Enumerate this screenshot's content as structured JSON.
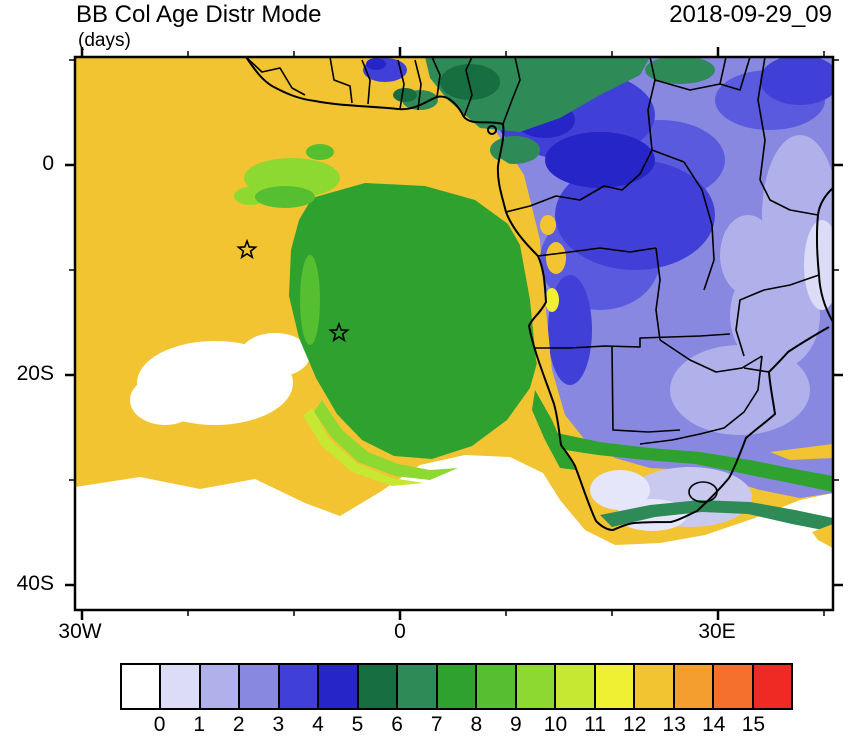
{
  "header": {
    "title": "BB Col Age Distr Mode",
    "units": "(days)",
    "timestamp": "2018-09-29_09"
  },
  "axes": {
    "y_ticks": [
      "0",
      "20S",
      "40S"
    ],
    "x_ticks": [
      "30W",
      "0",
      "30E"
    ]
  },
  "colorbar": {
    "labels": [
      "0",
      "1",
      "2",
      "3",
      "4",
      "5",
      "6",
      "7",
      "8",
      "9",
      "10",
      "11",
      "12",
      "13",
      "14",
      "15"
    ],
    "colors": [
      "#FFFFFF",
      "#DCDCF6",
      "#B0B0EA",
      "#8888E0",
      "#4040D8",
      "#2525C8",
      "#166E41",
      "#2E8B57",
      "#2FA12F",
      "#55BE31",
      "#8ED832",
      "#C6E832",
      "#EFEF33",
      "#F3C431",
      "#F39E2E",
      "#F4702C",
      "#EF2A25"
    ]
  },
  "chart_data": {
    "type": "heatmap",
    "title": "BB Col Age Distr Mode",
    "units": "days",
    "timestamp": "2018-09-29_09",
    "x_tick_labels": [
      "30W",
      "0",
      "30E"
    ],
    "y_tick_labels": [
      "0",
      "20S",
      "40S"
    ],
    "lon_range_deg": [
      -30.5,
      40.8
    ],
    "lat_range_deg": [
      -42.5,
      10.3
    ],
    "levels": [
      0,
      1,
      2,
      3,
      4,
      5,
      6,
      7,
      8,
      9,
      10,
      11,
      12,
      13,
      14,
      15
    ],
    "palette": [
      "#FFFFFF",
      "#DCDCF6",
      "#B0B0EA",
      "#8888E0",
      "#4040D8",
      "#2525C8",
      "#166E41",
      "#2E8B57",
      "#2FA12F",
      "#55BE31",
      "#8ED832",
      "#C6E832",
      "#EFEF33",
      "#F3C431",
      "#F39E2E",
      "#F4702C",
      "#EF2A25"
    ],
    "markers": [
      {
        "symbol": "open-star",
        "lon_deg": -14.5,
        "lat_deg": -8.1
      },
      {
        "symbol": "open-star",
        "lon_deg": -5.8,
        "lat_deg": -16.0
      }
    ],
    "regions_estimated": [
      {
        "area": "southeast Atlantic ocean west and south of the plume",
        "age_days": "12-13 (gold)"
      },
      {
        "area": "central plume off Angola around the star markers",
        "age_days": "8-9 (green)"
      },
      {
        "area": "fringe northwest of plume and SW crescent edge",
        "age_days": "10-11 (light green)"
      },
      {
        "area": "Gulf of Guinea / Nigeria-Cameroon top band",
        "age_days": "6-7 (dark green)"
      },
      {
        "area": "Congo basin and central-east Africa",
        "age_days": "3-5 (blue patches)"
      },
      {
        "area": "eastern interior (Zambia, Tanzania, Zimbabwe)",
        "age_days": "2-3 (periwinkle)"
      },
      {
        "area": "far eastern edge / Mozambique coast",
        "age_days": "1-2 (pale lavender)"
      },
      {
        "area": "South African interior",
        "age_days": "0-1 (white to pale lavender)"
      },
      {
        "area": "band across Botswana / northern South Africa",
        "age_days": "8-9 (green)"
      },
      {
        "area": "arc offshore south of South Africa",
        "age_days": "7-8 (sea green)"
      },
      {
        "area": "far southwestern ocean",
        "age_days": "0 (white)"
      }
    ]
  }
}
